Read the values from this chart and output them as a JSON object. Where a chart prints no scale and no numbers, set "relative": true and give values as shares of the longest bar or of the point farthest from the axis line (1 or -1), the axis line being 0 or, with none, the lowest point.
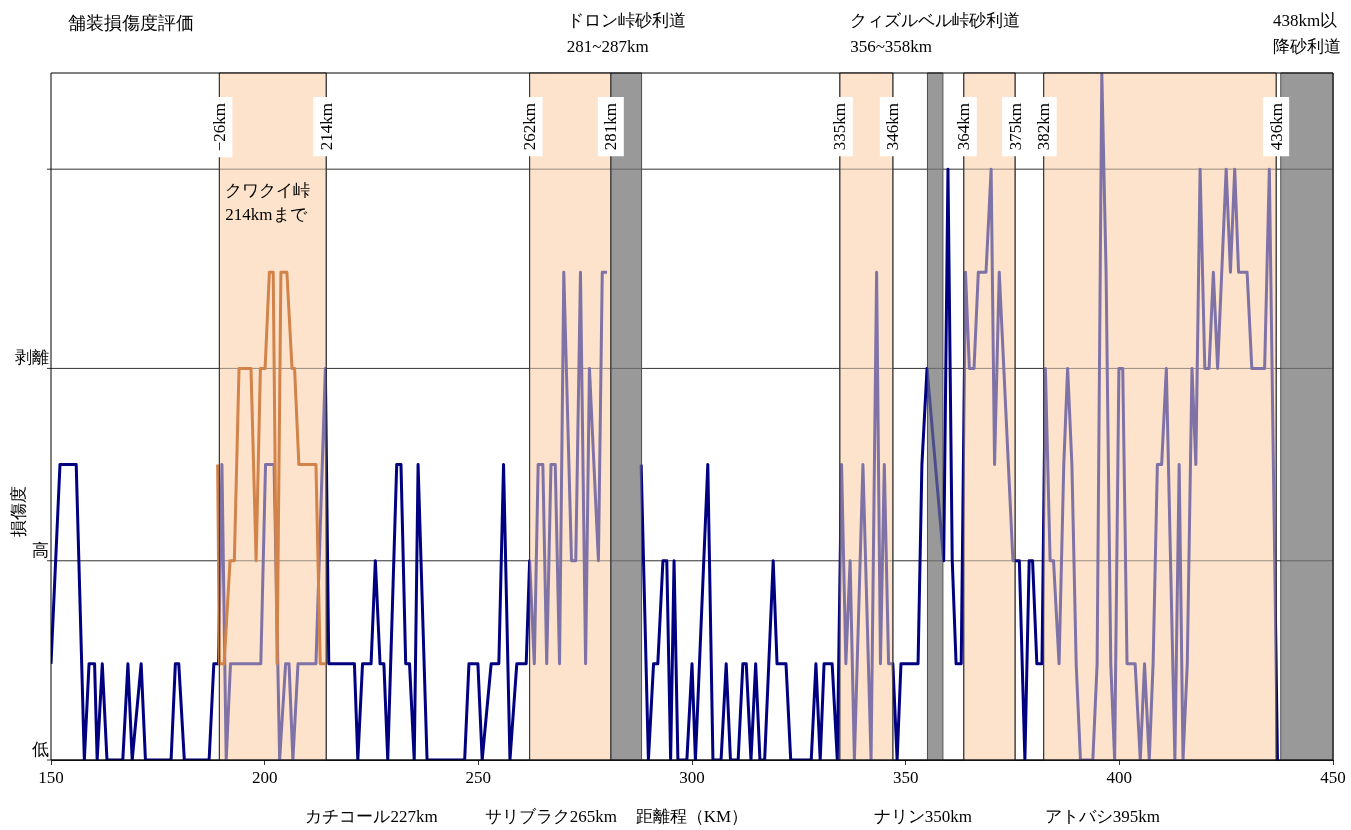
{
  "chart_data": {
    "type": "line",
    "title": "舗装損傷度評価",
    "xlabel": "距離程（KM）",
    "ylabel": "損傷度",
    "relative": true,
    "series": [
      {
        "color": "#000080",
        "x": [
          150,
          152.1,
          155.9,
          157.8,
          158.9,
          160.2,
          160.8,
          162,
          163.1,
          166.8,
          168,
          169,
          171.1,
          172.1,
          178.1,
          179.1,
          179.9,
          181.2,
          187,
          188.1,
          189.2,
          190,
          191,
          192,
          199.1,
          200.2,
          202.2,
          203.5,
          204.9,
          205.7,
          206.6,
          207.8,
          212,
          214.2,
          215,
          221,
          221.8,
          222.9,
          224.9,
          225.9,
          227,
          227.9,
          228.8,
          230.9,
          231.9,
          233,
          233.9,
          235,
          235.9,
          238,
          246.8,
          247.8,
          249.9,
          250.9,
          253,
          254.8,
          255.9,
          257.4,
          259,
          261.2,
          262,
          263.1,
          264,
          265.1,
          266,
          267,
          268,
          269,
          270,
          271.8,
          272.8,
          273.9,
          275.1,
          276,
          278.1,
          279,
          280.1,
          284,
          288.1,
          289.8,
          291,
          292,
          293.2,
          294.1,
          295,
          295.8,
          296.7,
          298.8,
          300,
          300.8,
          303.7,
          304.9,
          306.8,
          308,
          309,
          310.8,
          311.9,
          312.7,
          313.8,
          314.9,
          315.9,
          317,
          319,
          319.9,
          322,
          323.1,
          327.9,
          329,
          330,
          330.9,
          332.8,
          334,
          335,
          336,
          337,
          338,
          340,
          341.9,
          343.2,
          344.1,
          345,
          346,
          347,
          348,
          348.9,
          352.9,
          353.8,
          355,
          358.9,
          359.9,
          360.9,
          361.8,
          363,
          364,
          364.9,
          366,
          367,
          368.8,
          370,
          370.8,
          371.9,
          375.1,
          376.6,
          377.9,
          378.9,
          379.7,
          380.7,
          381.9,
          382.7,
          383.8,
          384.6,
          385.9,
          387,
          387.9,
          388.9,
          389.9,
          390.9,
          393.8,
          394.8,
          395.9,
          396.9,
          398,
          398.9,
          399.9,
          400.8,
          401.8,
          403.7,
          404.9,
          405.9,
          407,
          407.9,
          408.9,
          409.9,
          411,
          413,
          414,
          414.9,
          415.9,
          417,
          417.9,
          418.9,
          420,
          421,
          422,
          423,
          425,
          426,
          427,
          427.9,
          429.9,
          431,
          434,
          435.1,
          437
        ],
        "values": [
          0.14,
          0.43,
          0.43,
          0,
          0.14,
          0.14,
          0,
          0.14,
          0,
          0,
          0.14,
          0,
          0.14,
          0,
          0,
          0.14,
          0.14,
          0,
          0,
          0.14,
          0.14,
          0.43,
          0,
          0.14,
          0.14,
          0.43,
          0.43,
          0,
          0.14,
          0.14,
          0,
          0.14,
          0.14,
          0.57,
          0.14,
          0.14,
          0,
          0.14,
          0.14,
          0.29,
          0.14,
          0.14,
          0,
          0.43,
          0.43,
          0.14,
          0.14,
          0,
          0.43,
          0,
          0,
          0.14,
          0.14,
          0,
          0.14,
          0.14,
          0.43,
          0,
          0.14,
          0.14,
          0.29,
          0.14,
          0.43,
          0.43,
          0.14,
          0.43,
          0.43,
          0.14,
          0.71,
          0.29,
          0.29,
          0.71,
          0.14,
          0.57,
          0.29,
          0.71,
          0.71,
          null,
          0.43,
          0,
          0.14,
          0.14,
          0.29,
          0.29,
          0,
          0.29,
          0,
          0,
          0.14,
          0,
          0.43,
          0,
          0,
          0.14,
          0,
          0,
          0.14,
          0.14,
          0,
          0.14,
          0,
          0,
          0.29,
          0.14,
          0.14,
          0,
          0,
          0.14,
          0,
          0.14,
          0.14,
          0,
          0.43,
          0.14,
          0.29,
          0,
          0.43,
          0,
          0.71,
          0.14,
          0.43,
          0.14,
          0.14,
          0,
          0.14,
          0.14,
          0.43,
          0.57,
          0.29,
          0.86,
          0.29,
          0.14,
          0.14,
          0.71,
          0.57,
          0.57,
          0.71,
          0.71,
          0.86,
          0.43,
          0.71,
          0.29,
          0.29,
          0,
          0.29,
          0.29,
          0.14,
          0.14,
          0.57,
          0.29,
          0.29,
          0.14,
          0.43,
          0.57,
          0.43,
          0.14,
          0,
          0,
          0.14,
          1,
          0.71,
          0.14,
          0,
          0.57,
          0.57,
          0.14,
          0.14,
          0,
          0.14,
          0,
          0.14,
          0.43,
          0.43,
          0.57,
          0,
          0.43,
          0,
          0.14,
          0.57,
          0.43,
          0.86,
          0.57,
          0.57,
          0.71,
          0.57,
          0.86,
          0.71,
          0.86,
          0.71,
          0.71,
          0.57,
          0.57,
          0.86,
          0
        ]
      },
      {
        "color": "#d2834a",
        "x": [
          189,
          189.4,
          190.5,
          191.9,
          192.9,
          194,
          196.8,
          198,
          199,
          200.1,
          201.1,
          202,
          202.9,
          203.8,
          205.2,
          206.4,
          207,
          208,
          212,
          213,
          214.2
        ],
        "values": [
          0.43,
          0.14,
          0.14,
          0.29,
          0.29,
          0.57,
          0.57,
          0.29,
          0.57,
          0.57,
          0.71,
          0.71,
          0.14,
          0.71,
          0.71,
          0.57,
          0.57,
          0.43,
          0.43,
          0.14,
          0.14
        ]
      }
    ],
    "xlim": [
      150,
      450
    ],
    "xticks": [
      150,
      200,
      250,
      300,
      350,
      400,
      450
    ],
    "bands": [
      {
        "axis": "x",
        "from": 189.4,
        "to": 214.4,
        "color": "#fde3cb"
      },
      {
        "axis": "x",
        "from": 262,
        "to": 281,
        "color": "#fde3cb"
      },
      {
        "axis": "x",
        "from": 281,
        "to": 288.2,
        "color": "#999999",
        "label": "ドロン峠砂利道\n281~287km"
      },
      {
        "axis": "x",
        "from": 334.6,
        "to": 347,
        "color": "#fde3cb"
      },
      {
        "axis": "x",
        "from": 355.1,
        "to": 358.7,
        "color": "#999999",
        "label": "クィズルベル峠砂利道\n356~358km"
      },
      {
        "axis": "x",
        "from": 363.6,
        "to": 375.6,
        "color": "#fde3cb"
      },
      {
        "axis": "x",
        "from": 382.3,
        "to": 436.7,
        "color": "#fde3cb"
      },
      {
        "axis": "x",
        "from": 437.8,
        "to": 450,
        "color": "#999999",
        "label": "438km以降砂利道"
      }
    ],
    "ref_lines": [
      {
        "axis": "y",
        "value": 0,
        "label": "低"
      },
      {
        "axis": "y",
        "value": 0.29,
        "label": "高"
      },
      {
        "axis": "y",
        "value": 0.57,
        "label": "剥離"
      },
      {
        "axis": "y",
        "value": 0.86
      },
      {
        "axis": "x",
        "value": 189.4,
        "label": "−26km"
      },
      {
        "axis": "x",
        "value": 214.4,
        "label": "214km"
      },
      {
        "axis": "x",
        "value": 262,
        "label": "262km"
      },
      {
        "axis": "x",
        "value": 281,
        "label": "281km"
      },
      {
        "axis": "x",
        "value": 334.6,
        "label": "335km"
      },
      {
        "axis": "x",
        "value": 347,
        "label": "346km"
      },
      {
        "axis": "x",
        "value": 363.6,
        "label": "364km"
      },
      {
        "axis": "x",
        "value": 375.6,
        "label": "375km"
      },
      {
        "axis": "x",
        "value": 382.3,
        "label": "382km"
      },
      {
        "axis": "x",
        "value": 436.7,
        "label": "436km"
      }
    ],
    "annotations": [
      {
        "text": "クワクイ峠\n214kmまで",
        "x": 189.4,
        "y": 0.84
      },
      "カチコール227km",
      "サリブラク265km",
      "ナリン350km",
      "アトバシ395km"
    ]
  }
}
